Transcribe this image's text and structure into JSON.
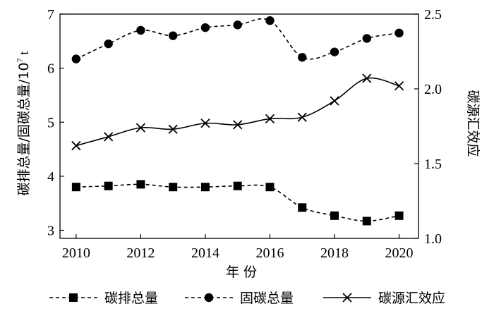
{
  "chart_data": {
    "type": "line",
    "xlabel": "年 份",
    "ylabel_left": "碳排总量/固碳总量/10",
    "ylabel_left_sup": "7",
    "ylabel_left_unit": " t",
    "ylabel_right": "碳源汇效应",
    "x": [
      2010,
      2011,
      2012,
      2013,
      2014,
      2015,
      2016,
      2017,
      2018,
      2019,
      2020
    ],
    "x_ticks": [
      "2010",
      "2012",
      "2014",
      "2016",
      "2018",
      "2020"
    ],
    "y_left_ticks": [
      "3",
      "4",
      "5",
      "6",
      "7"
    ],
    "y_right_ticks": [
      "1.0",
      "1.5",
      "2.0",
      "2.5"
    ],
    "ylim_left": [
      2.85,
      7
    ],
    "ylim_right": [
      1.0,
      2.5
    ],
    "xlim": [
      2009.5,
      2020.6
    ],
    "series": [
      {
        "name": "碳排总量",
        "axis": "left",
        "style": "dashed",
        "marker": "square",
        "values": [
          3.8,
          3.82,
          3.85,
          3.8,
          3.8,
          3.82,
          3.8,
          3.42,
          3.27,
          3.17,
          3.27
        ]
      },
      {
        "name": "固碳总量",
        "axis": "left",
        "style": "dashed",
        "marker": "circle",
        "values": [
          6.17,
          6.45,
          6.7,
          6.6,
          6.75,
          6.8,
          6.88,
          6.2,
          6.3,
          6.55,
          6.65
        ]
      },
      {
        "name": "碳源汇效应",
        "axis": "right",
        "style": "solid",
        "marker": "x",
        "values": [
          1.62,
          1.68,
          1.74,
          1.73,
          1.77,
          1.76,
          1.8,
          1.81,
          1.92,
          2.07,
          2.02
        ]
      }
    ],
    "legend_position": "bottom",
    "grid": false,
    "colors": {
      "line": "#000000",
      "background": "#ffffff"
    }
  }
}
